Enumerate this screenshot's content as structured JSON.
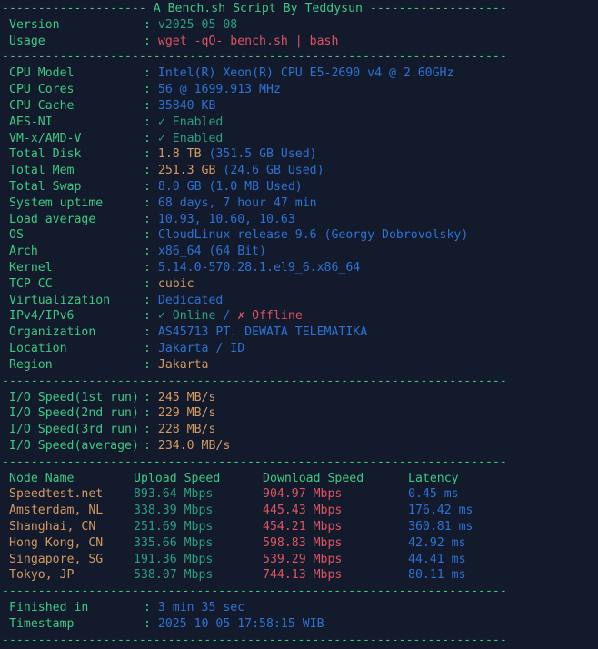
{
  "palette": {
    "bg": "#131a2b",
    "fg": "#3dc984",
    "green": "#2aa17e",
    "blue": "#2e72d4",
    "red": "#dd5463",
    "yellow": "#d29a63"
  },
  "ui": {
    "colon": ":"
  },
  "banner": {
    "title": "-------------------- A Bench.sh Script By Teddysun -------------------",
    "separator": "----------------------------------------------------------------------"
  },
  "script_info": {
    "rows": [
      {
        "label": "Version",
        "parts": [
          {
            "text": "v2025-05-08",
            "color": "green"
          }
        ]
      },
      {
        "label": "Usage",
        "parts": [
          {
            "text": "wget -qO- bench.sh | bash",
            "color": "red"
          }
        ]
      }
    ]
  },
  "system_info": {
    "rows": [
      {
        "label": "CPU Model",
        "parts": [
          {
            "text": "Intel(R) Xeon(R) CPU E5-2690 v4 @ 2.60GHz",
            "color": "blue"
          }
        ]
      },
      {
        "label": "CPU Cores",
        "parts": [
          {
            "text": "56 @ 1699.913 MHz",
            "color": "blue"
          }
        ]
      },
      {
        "label": "CPU Cache",
        "parts": [
          {
            "text": "35840 KB",
            "color": "blue"
          }
        ]
      },
      {
        "label": "AES-NI",
        "parts": [
          {
            "text": "✓ Enabled",
            "color": "green"
          }
        ]
      },
      {
        "label": "VM-x/AMD-V",
        "parts": [
          {
            "text": "✓ Enabled",
            "color": "green"
          }
        ]
      },
      {
        "label": "Total Disk",
        "parts": [
          {
            "text": "1.8 TB",
            "color": "yellow"
          },
          {
            "text": "(351.5 GB Used)",
            "color": "blue"
          }
        ]
      },
      {
        "label": "Total Mem",
        "parts": [
          {
            "text": "251.3 GB",
            "color": "yellow"
          },
          {
            "text": "(24.6 GB Used)",
            "color": "blue"
          }
        ]
      },
      {
        "label": "Total Swap",
        "parts": [
          {
            "text": "8.0 GB (1.0 MB Used)",
            "color": "blue"
          }
        ]
      },
      {
        "label": "System uptime",
        "parts": [
          {
            "text": "68 days, 7 hour 47 min",
            "color": "blue"
          }
        ]
      },
      {
        "label": "Load average",
        "parts": [
          {
            "text": "10.93, 10.60, 10.63",
            "color": "blue"
          }
        ]
      },
      {
        "label": "OS",
        "parts": [
          {
            "text": "CloudLinux release 9.6 (Georgy Dobrovolsky)",
            "color": "blue"
          }
        ]
      },
      {
        "label": "Arch",
        "parts": [
          {
            "text": "x86_64 (64 Bit)",
            "color": "blue"
          }
        ]
      },
      {
        "label": "Kernel",
        "parts": [
          {
            "text": "5.14.0-570.28.1.el9_6.x86_64",
            "color": "blue"
          }
        ]
      },
      {
        "label": "TCP CC",
        "parts": [
          {
            "text": "cubic",
            "color": "yellow"
          }
        ]
      },
      {
        "label": "Virtualization",
        "parts": [
          {
            "text": "Dedicated",
            "color": "blue"
          }
        ]
      },
      {
        "label": "IPv4/IPv6",
        "parts": [
          {
            "text": "✓ Online",
            "color": "green"
          },
          {
            "text": "/",
            "color": "blue"
          },
          {
            "text": "✗ Offline",
            "color": "red"
          }
        ]
      },
      {
        "label": "Organization",
        "parts": [
          {
            "text": "AS45713 PT. DEWATA TELEMATIKA",
            "color": "blue"
          }
        ]
      },
      {
        "label": "Location",
        "parts": [
          {
            "text": "Jakarta / ID",
            "color": "blue"
          }
        ]
      },
      {
        "label": "Region",
        "parts": [
          {
            "text": "Jakarta",
            "color": "yellow"
          }
        ]
      }
    ]
  },
  "io_speed": {
    "rows": [
      {
        "label": "I/O Speed(1st run)",
        "parts": [
          {
            "text": "245 MB/s",
            "color": "yellow"
          }
        ]
      },
      {
        "label": "I/O Speed(2nd run)",
        "parts": [
          {
            "text": "229 MB/s",
            "color": "yellow"
          }
        ]
      },
      {
        "label": "I/O Speed(3rd run)",
        "parts": [
          {
            "text": "228 MB/s",
            "color": "yellow"
          }
        ]
      },
      {
        "label": "I/O Speed(average)",
        "parts": [
          {
            "text": "234.0 MB/s",
            "color": "yellow"
          }
        ]
      }
    ]
  },
  "speedtest": {
    "headers": [
      "Node Name",
      "Upload Speed",
      "Download Speed",
      "Latency"
    ],
    "colors": {
      "node": "yellow",
      "upload": "green",
      "download": "red",
      "latency": "blue"
    },
    "rows": [
      {
        "node": "Speedtest.net",
        "upload": "893.64 Mbps",
        "download": "904.97 Mbps",
        "latency": "0.45 ms"
      },
      {
        "node": "Amsterdam, NL",
        "upload": "338.39 Mbps",
        "download": "445.43 Mbps",
        "latency": "176.42 ms"
      },
      {
        "node": "Shanghai, CN",
        "upload": "251.69 Mbps",
        "download": "454.21 Mbps",
        "latency": "360.81 ms"
      },
      {
        "node": "Hong Kong, CN",
        "upload": "335.66 Mbps",
        "download": "598.83 Mbps",
        "latency": "42.92 ms"
      },
      {
        "node": "Singapore, SG",
        "upload": "191.36 Mbps",
        "download": "539.29 Mbps",
        "latency": "44.41 ms"
      },
      {
        "node": "Tokyo, JP",
        "upload": "538.07 Mbps",
        "download": "744.13 Mbps",
        "latency": "80.11 ms"
      }
    ]
  },
  "footer": {
    "rows": [
      {
        "label": "Finished in",
        "parts": [
          {
            "text": "3 min 35 sec",
            "color": "blue"
          }
        ]
      },
      {
        "label": "Timestamp",
        "parts": [
          {
            "text": "2025-10-05 17:58:15 WIB",
            "color": "blue"
          }
        ]
      }
    ]
  }
}
